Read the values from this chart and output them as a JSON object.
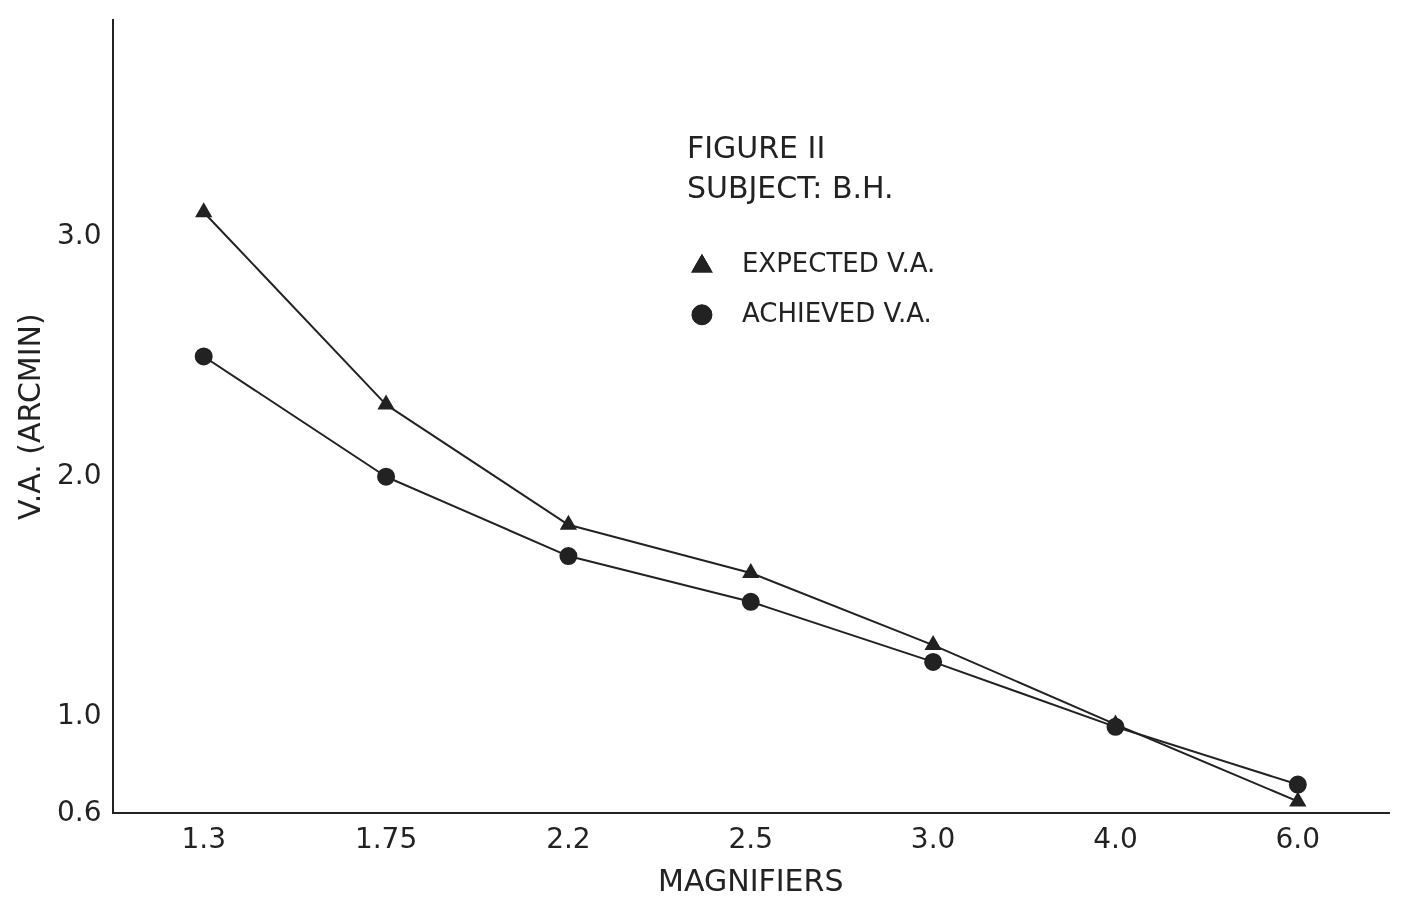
{
  "chart_data": {
    "type": "line",
    "xlabel": "MAGNIFIERS",
    "ylabel": "V.A. (ARCMIN)",
    "annotations": [
      "FIGURE II",
      "SUBJECT: B.H."
    ],
    "categories": [
      "1.3",
      "1.75",
      "2.2",
      "2.5",
      "3.0",
      "4.0",
      "6.0"
    ],
    "series": [
      {
        "name": "EXPECTED V.A.",
        "color": "#222222",
        "marker": "triangle",
        "values": [
          3.1,
          2.3,
          1.8,
          1.6,
          1.3,
          0.97,
          0.65
        ]
      },
      {
        "name": "ACHIEVED V.A.",
        "color": "#222222",
        "marker": "circle",
        "values": [
          2.5,
          2.0,
          1.67,
          1.48,
          1.23,
          0.96,
          0.72
        ]
      }
    ],
    "ylim": [
      0.6,
      3.9
    ],
    "yticks": [
      0.6,
      {
        "value": 1,
        "label": "1.0"
      },
      {
        "value": 2,
        "label": "2.0"
      },
      {
        "value": 3,
        "label": "3.0"
      }
    ],
    "grid": false,
    "legend": "top right",
    "line_style": "solid"
  }
}
